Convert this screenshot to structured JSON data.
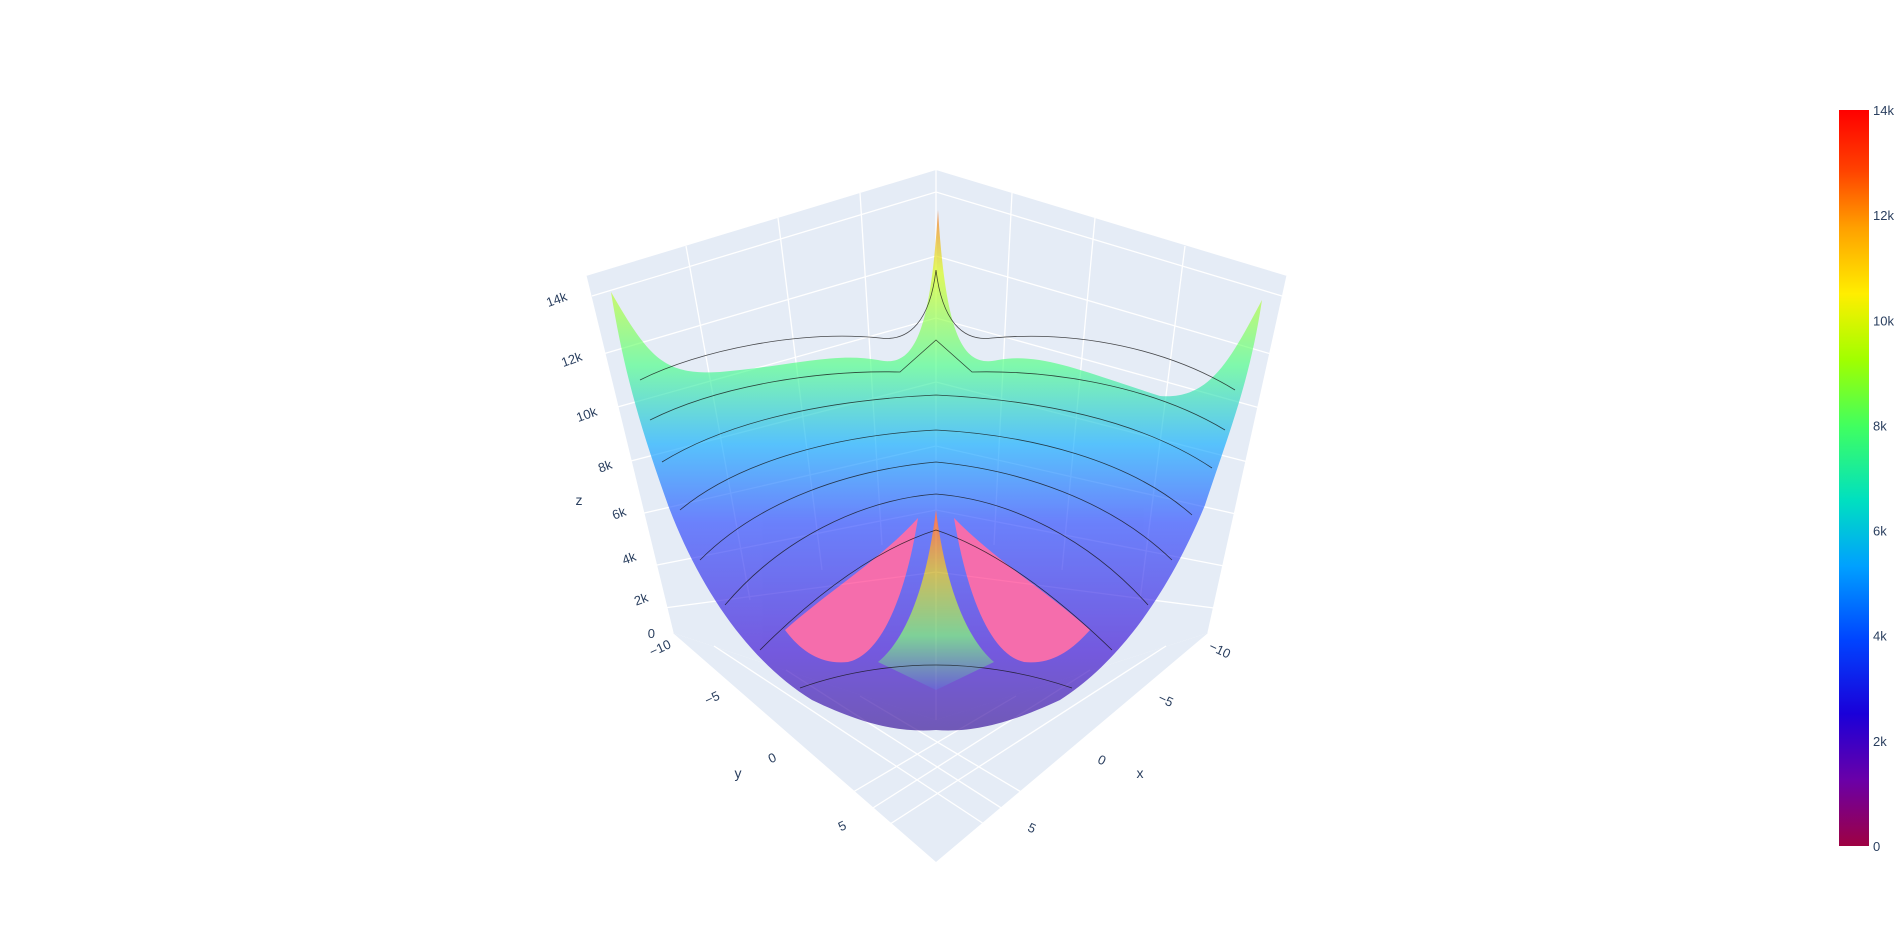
{
  "chart_data": {
    "type": "surface",
    "title": "",
    "x": {
      "title": "x",
      "range": [
        -10,
        10
      ],
      "ticks": [
        "−10",
        "−5",
        "0",
        "5"
      ]
    },
    "y": {
      "title": "y",
      "range": [
        -10,
        10
      ],
      "ticks": [
        "−10",
        "−5",
        "0",
        "5"
      ]
    },
    "z": {
      "title": "z",
      "range": [
        0,
        14000
      ],
      "ticks": [
        "0",
        "2k",
        "4k",
        "6k",
        "8k",
        "10k",
        "12k",
        "14k"
      ]
    },
    "colorbar": {
      "ticks": [
        "0",
        "2k",
        "4k",
        "6k",
        "8k",
        "10k",
        "12k",
        "14k"
      ],
      "range": [
        0,
        14000
      ],
      "colorscale": [
        "#9e0142",
        "#6a00a8",
        "#1a00d9",
        "#0044ff",
        "#00a0ff",
        "#00e0c0",
        "#40ff60",
        "#a0ff00",
        "#ffee00",
        "#ffa000",
        "#ff4000",
        "#ff0000"
      ],
      "placement": "right"
    },
    "surface": {
      "shape": "bowl with raised corners and center ridge",
      "min_z": 0,
      "max_z": 14000,
      "contours": "black z-contour lines",
      "opacity": 0.6
    },
    "grid": true,
    "scene_background": "#e5ecf6"
  }
}
